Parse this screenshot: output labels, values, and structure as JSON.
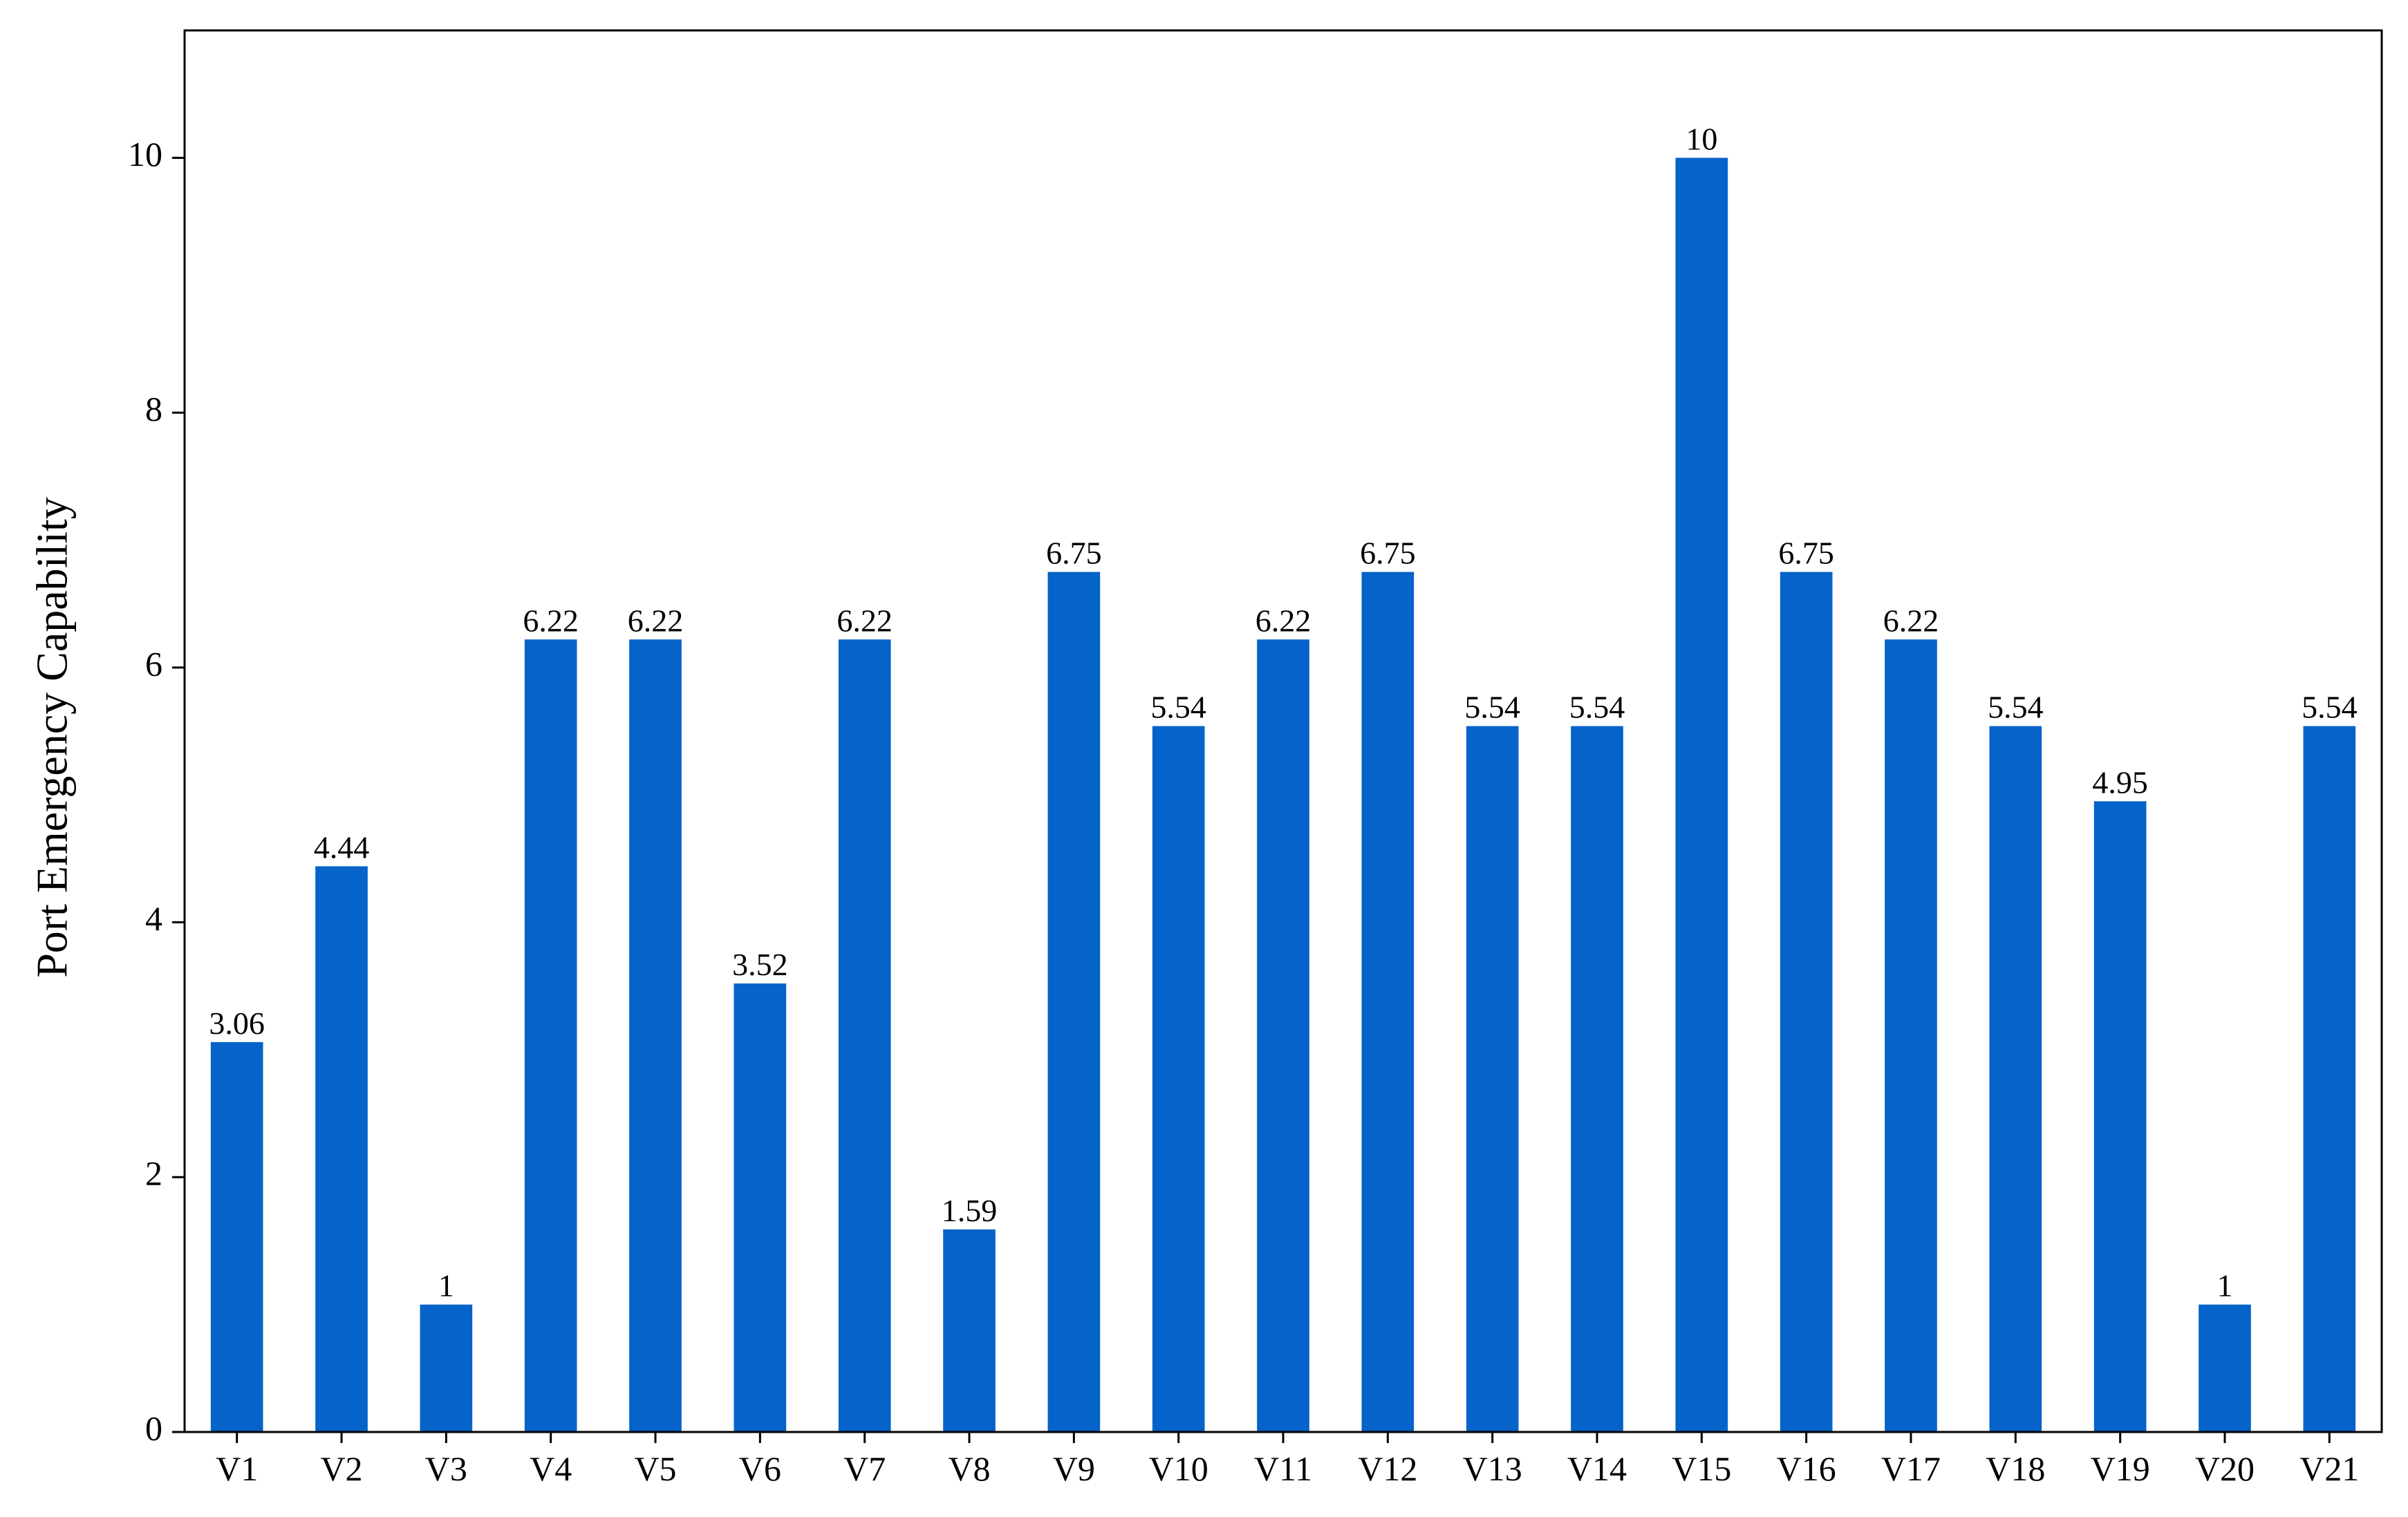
{
  "chart_data": {
    "type": "bar",
    "y_label": "Port Emergency Capability",
    "categories": [
      "V1",
      "V2",
      "V3",
      "V4",
      "V5",
      "V6",
      "V7",
      "V8",
      "V9",
      "V10",
      "V11",
      "V12",
      "V13",
      "V14",
      "V15",
      "V16",
      "V17",
      "V18",
      "V19",
      "V20",
      "V21"
    ],
    "values": [
      3.06,
      4.44,
      1,
      6.22,
      6.22,
      3.52,
      6.22,
      1.59,
      6.75,
      5.54,
      6.22,
      6.75,
      5.54,
      5.54,
      10,
      6.75,
      6.22,
      5.54,
      4.95,
      1,
      5.54
    ],
    "color": "#0563c9",
    "ylim": [
      0,
      11
    ],
    "yticks": [
      0,
      2,
      4,
      6,
      8,
      10
    ],
    "grid": false
  }
}
